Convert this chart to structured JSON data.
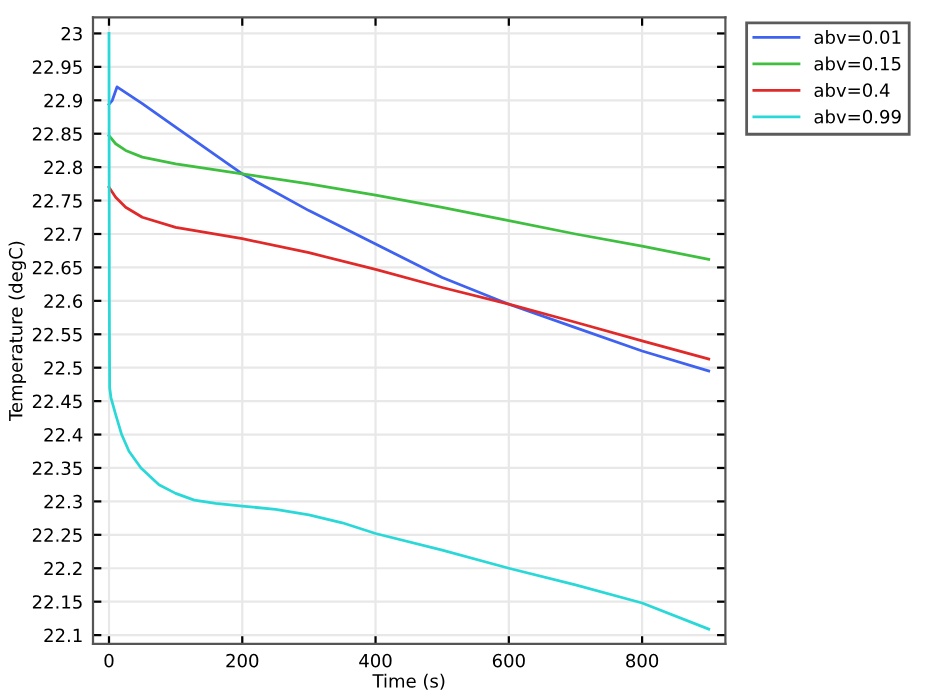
{
  "chart_data": {
    "type": "line",
    "xlabel": "Time (s)",
    "ylabel": "Temperature (degC)",
    "xlim": [
      -24,
      925
    ],
    "ylim": [
      22.087,
      23.024
    ],
    "xticks": [
      0,
      200,
      400,
      600,
      800
    ],
    "yticks": [
      22.1,
      22.15,
      22.2,
      22.25,
      22.3,
      22.35,
      22.4,
      22.45,
      22.5,
      22.55,
      22.6,
      22.65,
      22.7,
      22.75,
      22.8,
      22.85,
      22.9,
      22.95,
      23
    ],
    "grid": true,
    "legend": "top right",
    "marker": "none",
    "line_style": "solid",
    "series": [
      {
        "name": "abv=0.01",
        "color": "#3f62f0",
        "x": [
          0,
          5,
          12,
          50,
          100,
          200,
          300,
          400,
          500,
          600,
          700,
          800,
          900
        ],
        "values": [
          22.894,
          22.9,
          22.92,
          22.895,
          22.86,
          22.79,
          22.735,
          22.685,
          22.635,
          22.595,
          22.56,
          22.525,
          22.495
        ]
      },
      {
        "name": "abv=0.15",
        "color": "#3fbf3f",
        "x": [
          0,
          10,
          25,
          50,
          100,
          200,
          300,
          400,
          500,
          600,
          700,
          800,
          900
        ],
        "values": [
          22.847,
          22.835,
          22.825,
          22.815,
          22.805,
          22.79,
          22.775,
          22.758,
          22.74,
          22.72,
          22.7,
          22.682,
          22.662
        ]
      },
      {
        "name": "abv=0.4",
        "color": "#e02a2a",
        "x": [
          0,
          10,
          25,
          50,
          100,
          200,
          300,
          400,
          500,
          600,
          700,
          800,
          900
        ],
        "values": [
          22.77,
          22.755,
          22.74,
          22.725,
          22.71,
          22.693,
          22.672,
          22.647,
          22.62,
          22.595,
          22.568,
          22.54,
          22.513
        ]
      },
      {
        "name": "abv=0.99",
        "color": "#2ad8d8",
        "x": [
          0,
          0.5,
          1,
          3,
          10,
          19,
          30,
          48,
          75,
          100,
          128,
          160,
          200,
          250,
          300,
          350,
          400,
          500,
          600,
          700,
          800,
          900
        ],
        "values": [
          23.0,
          22.6,
          22.47,
          22.455,
          22.43,
          22.4,
          22.375,
          22.35,
          22.325,
          22.312,
          22.302,
          22.297,
          22.293,
          22.288,
          22.28,
          22.268,
          22.252,
          22.227,
          22.2,
          22.175,
          22.148,
          22.109
        ]
      }
    ]
  }
}
